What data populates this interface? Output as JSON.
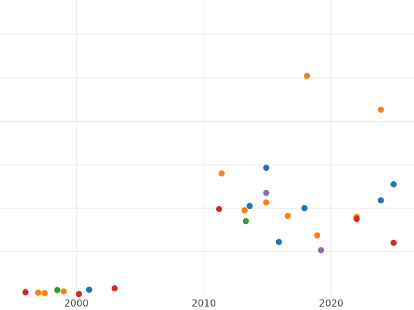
{
  "chart_data": {
    "type": "scatter",
    "title": "",
    "xlabel": "",
    "ylabel": "",
    "xlim": [
      1994,
      2026.5
    ],
    "ylim": [
      0,
      6.8
    ],
    "grid": true,
    "legend": "none",
    "x_ticks": [
      {
        "value": 2000,
        "label": "2000"
      },
      {
        "value": 2010,
        "label": "2010"
      },
      {
        "value": 2020,
        "label": "2020"
      }
    ],
    "y_grid_values": [
      1,
      2,
      3,
      4,
      5,
      6
    ],
    "series": [
      {
        "color": "#1f77b4",
        "points": [
          {
            "x": 2001.0,
            "y": 0.12
          },
          {
            "x": 2013.6,
            "y": 2.05
          },
          {
            "x": 2014.9,
            "y": 2.93
          },
          {
            "x": 2015.9,
            "y": 1.22
          },
          {
            "x": 2017.9,
            "y": 2.0
          },
          {
            "x": 2023.9,
            "y": 2.18
          },
          {
            "x": 2024.9,
            "y": 2.55
          }
        ]
      },
      {
        "color": "#ff7f0e",
        "points": [
          {
            "x": 1997.0,
            "y": 0.05
          },
          {
            "x": 1997.5,
            "y": 0.04
          },
          {
            "x": 1999.0,
            "y": 0.08
          },
          {
            "x": 2011.4,
            "y": 2.8
          },
          {
            "x": 2013.2,
            "y": 1.95
          },
          {
            "x": 2014.9,
            "y": 2.13
          },
          {
            "x": 2016.6,
            "y": 1.82
          },
          {
            "x": 2018.1,
            "y": 5.05
          },
          {
            "x": 2018.9,
            "y": 1.37
          },
          {
            "x": 2022.0,
            "y": 1.8
          },
          {
            "x": 2023.9,
            "y": 4.27
          }
        ]
      },
      {
        "color": "#2ca02c",
        "points": [
          {
            "x": 1998.5,
            "y": 0.11
          },
          {
            "x": 2013.3,
            "y": 1.7
          }
        ]
      },
      {
        "color": "#d62728",
        "points": [
          {
            "x": 1996.0,
            "y": 0.06
          },
          {
            "x": 2000.2,
            "y": 0.02
          },
          {
            "x": 2003.0,
            "y": 0.15
          },
          {
            "x": 2011.2,
            "y": 1.98
          },
          {
            "x": 2022.0,
            "y": 1.75
          },
          {
            "x": 2024.9,
            "y": 1.2
          }
        ]
      },
      {
        "color": "#9467bd",
        "points": [
          {
            "x": 2014.9,
            "y": 2.35
          },
          {
            "x": 2019.2,
            "y": 1.03
          }
        ]
      }
    ]
  }
}
